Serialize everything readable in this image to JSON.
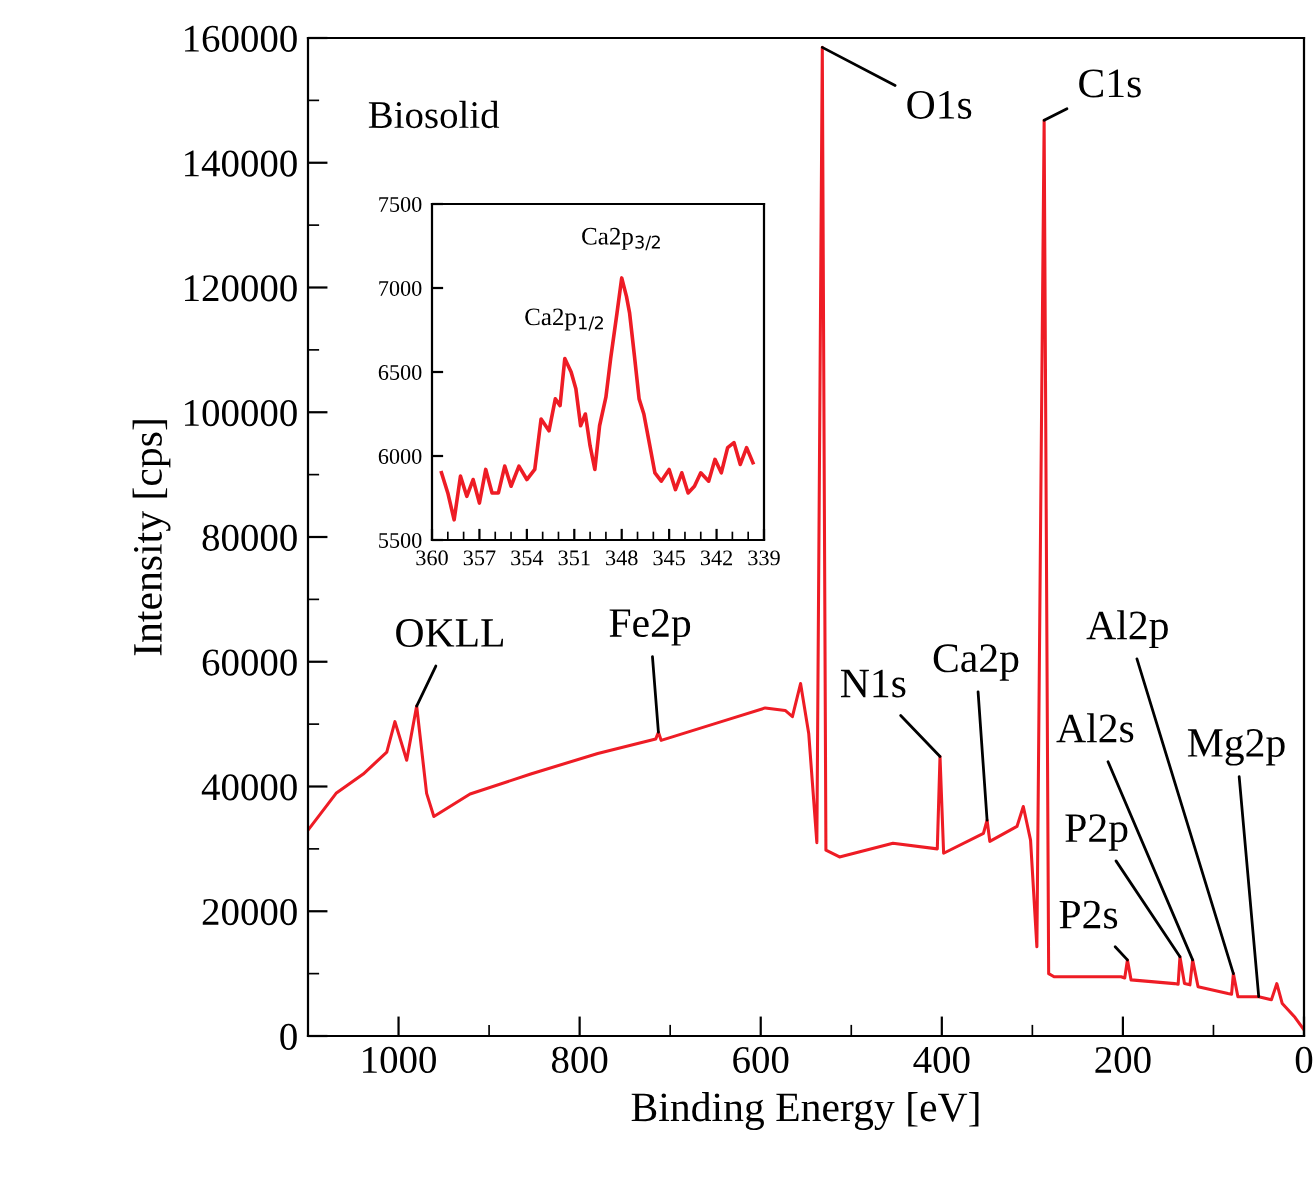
{
  "chart_data": [
    {
      "type": "line",
      "xlabel": "Binding Energy [eV]",
      "ylabel": "Intensity [cps]",
      "xlim": [
        1100,
        0
      ],
      "ylim": [
        0,
        160000
      ],
      "xticks": [
        1000,
        {
          "value": 900,
          "label": null
        },
        800,
        {
          "value": 700,
          "label": null
        },
        600,
        {
          "value": 500,
          "label": null
        },
        400,
        {
          "value": 300,
          "label": null
        },
        200,
        {
          "value": 100,
          "label": null
        },
        0
      ],
      "yticks": [
        0,
        {
          "value": 10000,
          "label": null
        },
        20000,
        {
          "value": 30000,
          "label": null
        },
        40000,
        {
          "value": 50000,
          "label": null
        },
        60000,
        {
          "value": 70000,
          "label": null
        },
        80000,
        {
          "value": 90000,
          "label": null
        },
        100000,
        {
          "value": 110000,
          "label": null
        },
        120000,
        {
          "value": 130000,
          "label": null
        },
        140000,
        {
          "value": 150000,
          "label": null
        },
        160000
      ],
      "series": [
        {
          "color": "#ee1c25",
          "x": [
            1100,
            1069,
            1039,
            1013,
            1004,
            991,
            980,
            969,
            961,
            921,
            854,
            780,
            716,
            713,
            710,
            639,
            595,
            573,
            565,
            556,
            547,
            538,
            532,
            528,
            513,
            454,
            405,
            402,
            398,
            354,
            350,
            347,
            317,
            310,
            302,
            295,
            287,
            282,
            276,
            202,
            198,
            195,
            191,
            143,
            139,
            137,
            132,
            126,
            123,
            117,
            84,
            80,
            78,
            73,
            50,
            36,
            30,
            24,
            10,
            0
          ],
          "values": [
            33000,
            38900,
            42000,
            45500,
            50400,
            44200,
            52900,
            38900,
            35200,
            38800,
            42000,
            45300,
            47600,
            48700,
            47400,
            50600,
            52600,
            52200,
            51200,
            56500,
            48500,
            31000,
            158500,
            29800,
            28700,
            30900,
            30000,
            44800,
            29300,
            32500,
            34600,
            31200,
            33600,
            36800,
            31400,
            14300,
            146800,
            10000,
            9500,
            9500,
            9300,
            12200,
            9000,
            8400,
            8300,
            12700,
            8400,
            8200,
            12200,
            7900,
            6800,
            6700,
            10000,
            6300,
            6300,
            5800,
            8400,
            5200,
            3000,
            1000
          ]
        }
      ],
      "annotations": [
        "Biosolid",
        {
          "text": "O1s",
          "x": 532,
          "y": 158500
        },
        {
          "text": "C1s",
          "x": 287,
          "y": 146800
        },
        {
          "text": "OKLL",
          "x": 980,
          "y": 52900
        },
        {
          "text": "Fe2p",
          "x": 713,
          "y": 48700
        },
        {
          "text": "N1s",
          "x": 402,
          "y": 44800
        },
        {
          "text": "Ca2p",
          "x": 350,
          "y": 34600
        },
        {
          "text": "P2s",
          "x": 195,
          "y": 12200
        },
        {
          "text": "P2p",
          "x": 137,
          "y": 12700
        },
        {
          "text": "Al2s",
          "x": 123,
          "y": 12200
        },
        {
          "text": "Al2p",
          "x": 78,
          "y": 10000
        },
        {
          "text": "Mg2p",
          "x": 50,
          "y": 6300
        }
      ]
    },
    {
      "type": "line",
      "xlim": [
        360,
        339
      ],
      "ylim": [
        5500,
        7500
      ],
      "xticks": [
        360,
        {
          "value": 359,
          "label": null
        },
        {
          "value": 358,
          "label": null
        },
        357,
        {
          "value": 356,
          "label": null
        },
        {
          "value": 355,
          "label": null
        },
        354,
        {
          "value": 353,
          "label": null
        },
        {
          "value": 352,
          "label": null
        },
        351,
        {
          "value": 350,
          "label": null
        },
        {
          "value": 349,
          "label": null
        },
        348,
        {
          "value": 347,
          "label": null
        },
        {
          "value": 346,
          "label": null
        },
        345,
        {
          "value": 344,
          "label": null
        },
        {
          "value": 343,
          "label": null
        },
        342,
        {
          "value": 341,
          "label": null
        },
        {
          "value": 340,
          "label": null
        },
        339
      ],
      "yticks": [
        5500,
        6000,
        6500,
        7000,
        7500
      ],
      "series": [
        {
          "color": "#ee1c25",
          "x": [
            359.4,
            359.0,
            358.6,
            358.2,
            357.8,
            357.4,
            357.0,
            356.6,
            356.2,
            355.8,
            355.4,
            355.0,
            354.5,
            354.0,
            353.5,
            353.1,
            352.6,
            352.2,
            351.9,
            351.6,
            351.2,
            350.9,
            350.6,
            350.3,
            350.0,
            349.7,
            349.4,
            349.0,
            348.7,
            348.3,
            348.0,
            347.7,
            347.5,
            347.2,
            346.9,
            346.6,
            346.3,
            345.9,
            345.5,
            345.0,
            344.6,
            344.2,
            343.8,
            343.4,
            343.0,
            342.5,
            342.1,
            341.7,
            341.3,
            340.9,
            340.5,
            340.1,
            339.7
          ],
          "values": [
            5900,
            5780,
            5620,
            5880,
            5760,
            5860,
            5720,
            5920,
            5780,
            5780,
            5940,
            5820,
            5940,
            5860,
            5920,
            6220,
            6150,
            6340,
            6300,
            6580,
            6500,
            6400,
            6180,
            6250,
            6060,
            5920,
            6180,
            6350,
            6580,
            6850,
            7060,
            6950,
            6850,
            6600,
            6340,
            6250,
            6100,
            5900,
            5850,
            5920,
            5800,
            5900,
            5780,
            5820,
            5900,
            5850,
            5980,
            5900,
            6050,
            6080,
            5950,
            6050,
            5960
          ]
        }
      ],
      "annotations": [
        {
          "text": "Ca2p$_{1/2}$",
          "x": 351.6,
          "y": 6580
        },
        {
          "text": "Ca2p$_{3/2}$",
          "x": 348.0,
          "y": 7060
        }
      ]
    }
  ]
}
